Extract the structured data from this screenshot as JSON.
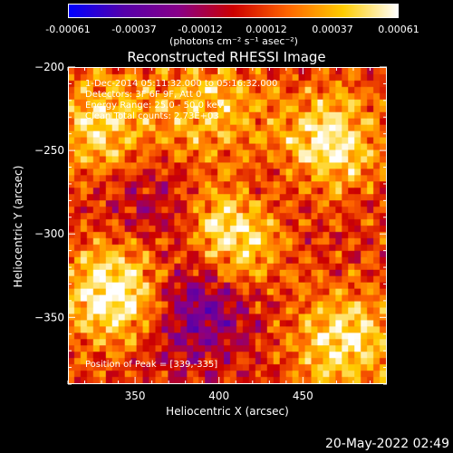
{
  "colorbar": {
    "tick_labels": [
      "-0.00061",
      "-0.00037",
      "-0.00012",
      "0.00012",
      "0.00037",
      "0.00061"
    ],
    "unit_label": "(photons cm⁻² s⁻¹ asec⁻²)",
    "range": [
      -0.00061,
      0.00061
    ],
    "colors": [
      "#0000ff",
      "#5500aa",
      "#880088",
      "#cc0000",
      "#ff6600",
      "#ffcc00",
      "#ffffff"
    ]
  },
  "header": {
    "title": "Reconstructed RHESSI Image"
  },
  "overlay": {
    "line1": "1-Dec-2014 05:11:32.000 to 05:16:32.000",
    "line2": "Detectors: 3F 6F 9F, Att 0",
    "line3": "Energy Range: 25.0 - 50.0 keV",
    "line4": "Clean     Total counts: 2.73E+03",
    "peak": "Position of Peak = [339,-335]"
  },
  "footer": {
    "timestamp": "20-May-2022 02:49"
  },
  "chart_data": {
    "type": "heatmap",
    "title": "Reconstructed RHESSI Image",
    "xlabel": "Heliocentric X (arcsec)",
    "ylabel": "Heliocentric Y (arcsec)",
    "xlim": [
      310,
      500
    ],
    "ylim": [
      -390,
      -200
    ],
    "x_ticks": [
      350,
      400,
      450
    ],
    "y_ticks": [
      -200,
      -250,
      -300,
      -350
    ],
    "x_tick_labels": [
      "350",
      "400",
      "450"
    ],
    "y_tick_labels": [
      "−200",
      "−250",
      "−300",
      "−350"
    ],
    "peak_position": [
      339,
      -335
    ],
    "bright_regions": [
      {
        "x": 339,
        "y": -335,
        "level": 0.00061
      },
      {
        "x": 410,
        "y": -298,
        "level": 0.00055
      },
      {
        "x": 465,
        "y": -245,
        "level": 0.0005
      },
      {
        "x": 475,
        "y": -365,
        "level": 0.00045
      },
      {
        "x": 330,
        "y": -235,
        "level": 0.0004
      },
      {
        "x": 395,
        "y": -225,
        "level": 0.00035
      }
    ],
    "dim_regions": [
      {
        "x": 385,
        "y": -345,
        "level": -0.0004
      },
      {
        "x": 430,
        "y": -275,
        "level": -0.0002
      },
      {
        "x": 360,
        "y": -285,
        "level": -0.0002
      }
    ]
  }
}
